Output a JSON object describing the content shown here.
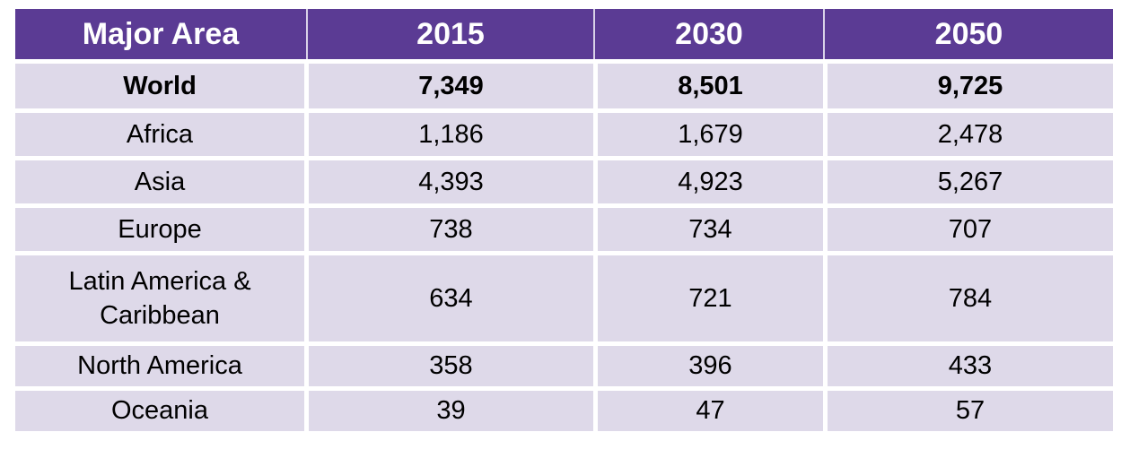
{
  "colors": {
    "header_bg": "#5B3B94",
    "row_bg": "#DED9E9",
    "header_divider": "#D9D2E8",
    "text": "#000000",
    "header_text": "#FFFFFF"
  },
  "table": {
    "columns": [
      "Major Area",
      "2015",
      "2030",
      "2050"
    ],
    "rows": [
      {
        "area": "World",
        "values": [
          "7,349",
          "8,501",
          "9,725"
        ]
      },
      {
        "area": "Africa",
        "values": [
          "1,186",
          "1,679",
          "2,478"
        ]
      },
      {
        "area": "Asia",
        "values": [
          "4,393",
          "4,923",
          "5,267"
        ]
      },
      {
        "area": "Europe",
        "values": [
          "738",
          "734",
          "707"
        ]
      },
      {
        "area": "Latin America & Caribbean",
        "values": [
          "634",
          "721",
          "784"
        ]
      },
      {
        "area": "North America",
        "values": [
          "358",
          "396",
          "433"
        ]
      },
      {
        "area": "Oceania",
        "values": [
          "39",
          "47",
          "57"
        ]
      }
    ]
  },
  "chart_data": {
    "type": "table",
    "title": "",
    "categories": [
      "2015",
      "2030",
      "2050"
    ],
    "row_header_label": "Major Area",
    "series": [
      {
        "name": "World",
        "values": [
          7349,
          8501,
          9725
        ]
      },
      {
        "name": "Africa",
        "values": [
          1186,
          1679,
          2478
        ]
      },
      {
        "name": "Asia",
        "values": [
          4393,
          4923,
          5267
        ]
      },
      {
        "name": "Europe",
        "values": [
          738,
          734,
          707
        ]
      },
      {
        "name": "Latin America & Caribbean",
        "values": [
          634,
          721,
          784
        ]
      },
      {
        "name": "North America",
        "values": [
          358,
          396,
          433
        ]
      },
      {
        "name": "Oceania",
        "values": [
          39,
          47,
          57
        ]
      }
    ]
  }
}
